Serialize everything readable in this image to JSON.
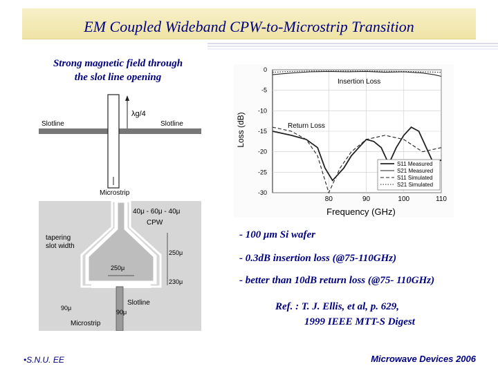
{
  "slide": {
    "title": "EM Coupled Wideband CPW-to-Microstrip Transition",
    "caption_line1": "Strong magnetic field through",
    "caption_line2": "the slot line opening",
    "bullets": [
      "-  100 μm Si wafer",
      "- 0.3dB insertion loss (@75-110GHz)",
      "- better than 10dB return loss (@75-  110GHz)"
    ],
    "ref_line1": "Ref. : T. J. Ellis, et al, p. 629,",
    "ref_line2": "1999 IEEE MTT-S Digest",
    "footer_left": "S.N.U. EE",
    "footer_right": "Microwave Devices 2006",
    "colors": {
      "title": "#000080",
      "title_bar": "#f3eab8"
    }
  },
  "fig_top": {
    "label_lambda": "λg/4",
    "label_slotline_left": "Slotline",
    "label_slotline_right": "Slotline",
    "label_microstrip": "Microstrip"
  },
  "fig_bottom": {
    "label_dims": "40μ - 60μ - 40μ",
    "label_cpw": "CPW",
    "label_taper1": "tapering",
    "label_taper2": "slot width",
    "label_250a": "250μ",
    "label_250b": "250μ",
    "label_230": "230μ",
    "label_90a": "90μ",
    "label_90b": "90μ",
    "label_slotline": "Slotline",
    "label_microstrip": "Microstrip"
  },
  "chart_data": {
    "type": "line",
    "xlabel": "Frequency (GHz)",
    "ylabel": "Loss (dB)",
    "xlim": [
      65,
      110
    ],
    "ylim": [
      -30,
      0
    ],
    "xticks": [
      80,
      90,
      100,
      110
    ],
    "yticks": [
      0,
      -5,
      -10,
      -15,
      -20,
      -25,
      -30
    ],
    "grid": true,
    "legend_position": "bottom-right",
    "annotations": [
      "Insertion Loss",
      "Return Loss"
    ],
    "series": [
      {
        "name": "S11 Measured",
        "style": "solid-bold",
        "x": [
          65,
          70,
          74,
          77,
          79,
          81,
          82,
          84,
          86,
          88,
          90,
          92,
          94,
          96,
          98,
          100,
          102,
          104,
          106,
          108,
          110
        ],
        "y": [
          -15,
          -16,
          -17,
          -19,
          -24,
          -27,
          -26,
          -24,
          -21,
          -19,
          -17,
          -17.5,
          -19,
          -23,
          -19,
          -16,
          -14,
          -15,
          -19,
          -23,
          -22
        ]
      },
      {
        "name": "S21 Measured",
        "style": "solid",
        "x": [
          65,
          70,
          75,
          80,
          85,
          90,
          95,
          100,
          105,
          108,
          110
        ],
        "y": [
          -1.2,
          -0.8,
          -0.5,
          -0.4,
          -0.5,
          -0.4,
          -0.6,
          -0.5,
          -0.8,
          -1.2,
          -1.6
        ]
      },
      {
        "name": "S11 Simulated",
        "style": "dashed",
        "x": [
          65,
          70,
          74,
          77,
          79,
          80,
          81,
          83,
          86,
          90,
          95,
          100,
          105,
          110
        ],
        "y": [
          -14,
          -15,
          -17,
          -21,
          -27,
          -30,
          -28,
          -24,
          -20,
          -17,
          -16,
          -17,
          -20,
          -19
        ]
      },
      {
        "name": "S21 Simulated",
        "style": "dotted",
        "x": [
          65,
          70,
          75,
          80,
          90,
          100,
          110
        ],
        "y": [
          -0.6,
          -0.4,
          -0.3,
          -0.3,
          -0.3,
          -0.4,
          -0.6
        ]
      }
    ]
  }
}
